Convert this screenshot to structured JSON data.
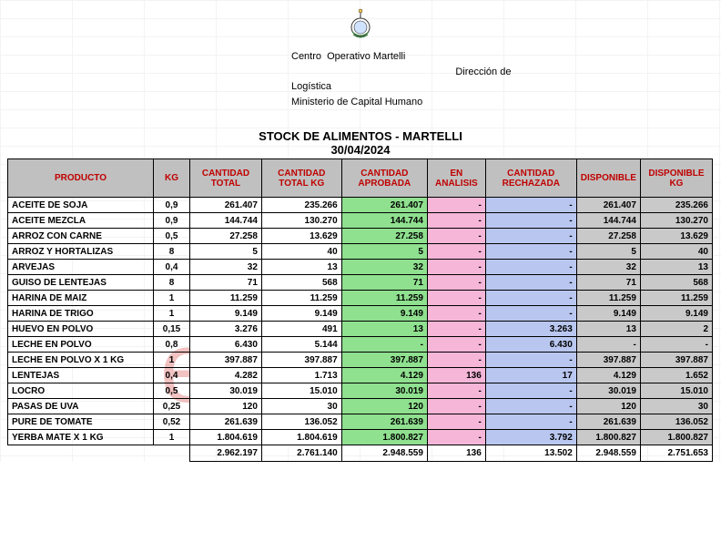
{
  "letterhead": {
    "line1": "Centro  Operativo Martelli",
    "line2": "                                                           Dirección de",
    "line3": "Logística",
    "line4": "",
    "line5": "Ministerio de Capital Humano"
  },
  "title": "STOCK DE ALIMENTOS - MARTELLI",
  "date": "30/04/2024",
  "watermark_text": "eldestape",
  "columns": [
    "PRODUCTO",
    "KG",
    "CANTIDAD TOTAL",
    "CANTIDAD TOTAL  KG",
    "CANTIDAD APROBADA",
    "EN ANALISIS",
    "CANTIDAD RECHAZADA",
    "DISPONIBLE",
    "DISPONIBLE KG"
  ],
  "rows": [
    {
      "producto": "ACEITE DE SOJA",
      "kg": "0,9",
      "ct": "261.407",
      "ctkg": "235.266",
      "ap": "261.407",
      "an": "-",
      "re": "-",
      "di": "261.407",
      "dikg": "235.266"
    },
    {
      "producto": "ACEITE MEZCLA",
      "kg": "0,9",
      "ct": "144.744",
      "ctkg": "130.270",
      "ap": "144.744",
      "an": "-",
      "re": "-",
      "di": "144.744",
      "dikg": "130.270"
    },
    {
      "producto": "ARROZ CON CARNE",
      "kg": "0,5",
      "ct": "27.258",
      "ctkg": "13.629",
      "ap": "27.258",
      "an": "-",
      "re": "-",
      "di": "27.258",
      "dikg": "13.629"
    },
    {
      "producto": "ARROZ Y HORTALIZAS",
      "kg": "8",
      "ct": "5",
      "ctkg": "40",
      "ap": "5",
      "an": "-",
      "re": "-",
      "di": "5",
      "dikg": "40"
    },
    {
      "producto": "ARVEJAS",
      "kg": "0,4",
      "ct": "32",
      "ctkg": "13",
      "ap": "32",
      "an": "-",
      "re": "-",
      "di": "32",
      "dikg": "13"
    },
    {
      "producto": "GUISO DE LENTEJAS",
      "kg": "8",
      "ct": "71",
      "ctkg": "568",
      "ap": "71",
      "an": "-",
      "re": "-",
      "di": "71",
      "dikg": "568"
    },
    {
      "producto": "HARINA DE MAIZ",
      "kg": "1",
      "ct": "11.259",
      "ctkg": "11.259",
      "ap": "11.259",
      "an": "-",
      "re": "-",
      "di": "11.259",
      "dikg": "11.259"
    },
    {
      "producto": "HARINA DE TRIGO",
      "kg": "1",
      "ct": "9.149",
      "ctkg": "9.149",
      "ap": "9.149",
      "an": "-",
      "re": "-",
      "di": "9.149",
      "dikg": "9.149"
    },
    {
      "producto": "HUEVO EN POLVO",
      "kg": "0,15",
      "ct": "3.276",
      "ctkg": "491",
      "ap": "13",
      "an": "-",
      "re": "3.263",
      "di": "13",
      "dikg": "2"
    },
    {
      "producto": "LECHE EN POLVO",
      "kg": "0,8",
      "ct": "6.430",
      "ctkg": "5.144",
      "ap": "-",
      "an": "-",
      "re": "6.430",
      "di": "-",
      "dikg": "-"
    },
    {
      "producto": "LECHE EN POLVO X 1 KG",
      "kg": "1",
      "ct": "397.887",
      "ctkg": "397.887",
      "ap": "397.887",
      "an": "-",
      "re": "-",
      "di": "397.887",
      "dikg": "397.887"
    },
    {
      "producto": "LENTEJAS",
      "kg": "0,4",
      "ct": "4.282",
      "ctkg": "1.713",
      "ap": "4.129",
      "an": "136",
      "re": "17",
      "di": "4.129",
      "dikg": "1.652"
    },
    {
      "producto": "LOCRO",
      "kg": "0,5",
      "ct": "30.019",
      "ctkg": "15.010",
      "ap": "30.019",
      "an": "-",
      "re": "-",
      "di": "30.019",
      "dikg": "15.010"
    },
    {
      "producto": "PASAS DE UVA",
      "kg": "0,25",
      "ct": "120",
      "ctkg": "30",
      "ap": "120",
      "an": "-",
      "re": "-",
      "di": "120",
      "dikg": "30"
    },
    {
      "producto": "PURE DE TOMATE",
      "kg": "0,52",
      "ct": "261.639",
      "ctkg": "136.052",
      "ap": "261.639",
      "an": "-",
      "re": "-",
      "di": "261.639",
      "dikg": "136.052"
    },
    {
      "producto": "YERBA MATE X 1 KG",
      "kg": "1",
      "ct": "1.804.619",
      "ctkg": "1.804.619",
      "ap": "1.800.827",
      "an": "-",
      "re": "3.792",
      "di": "1.800.827",
      "dikg": "1.800.827"
    }
  ],
  "totals": {
    "ct": "2.962.197",
    "ctkg": "2.761.140",
    "ap": "2.948.559",
    "an": "136",
    "re": "13.502",
    "di": "2.948.559",
    "dikg": "2.751.653"
  },
  "col_bg": {
    "ct": "#ffffff",
    "ctkg": "#ffffff",
    "ap": "#8fe08f",
    "an": "#f5b6d8",
    "re": "#b9c7f0",
    "di": "#c9c9c9",
    "dikg": "#c9c9c9"
  }
}
